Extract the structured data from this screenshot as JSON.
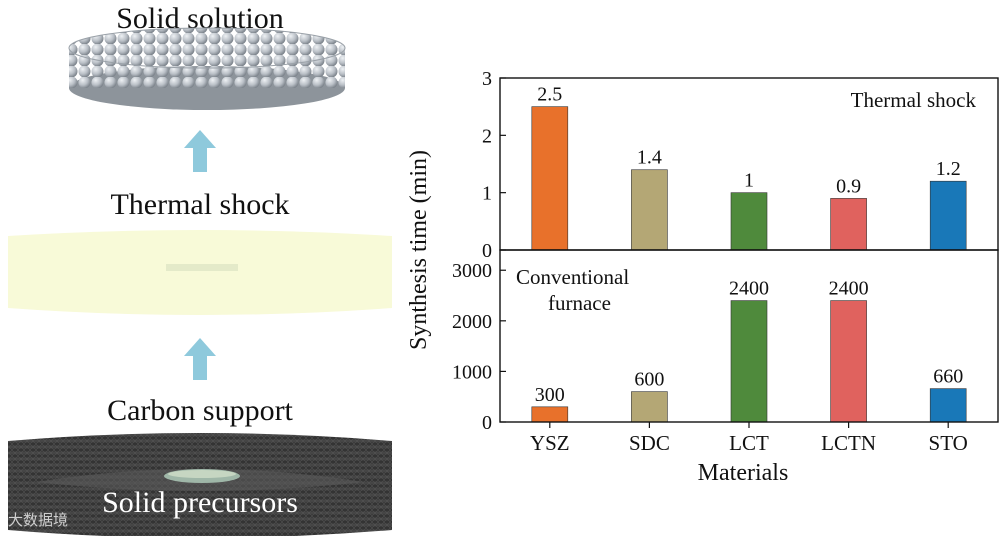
{
  "schematic": {
    "stages": [
      "Solid solution",
      "Thermal shock",
      "Carbon support",
      "Solid precursors"
    ],
    "colors": {
      "arrow": "#8ec9dc",
      "sphere": "#b9bfc6",
      "glow": "#f8fad8",
      "support": "#3e3e3e"
    }
  },
  "watermark": "大数据境",
  "chart_data": {
    "type": "bar",
    "categories": [
      "YSZ",
      "SDC",
      "LCT",
      "LCTN",
      "STO"
    ],
    "colors": [
      "#e8712b",
      "#b4a775",
      "#4f8a3c",
      "#e0625e",
      "#1978b8"
    ],
    "xlabel": "Materials",
    "ylabel": "Synthesis time (min)",
    "panels": [
      {
        "label_lines": [
          "Thermal shock"
        ],
        "label_position": "top-right",
        "values": [
          2.5,
          1.4,
          1,
          0.9,
          1.2
        ],
        "value_labels": [
          "2.5",
          "1.4",
          "1",
          "0.9",
          "1.2"
        ],
        "ylim": [
          0,
          3
        ],
        "yticks": [
          "0",
          "1",
          "2",
          "3"
        ]
      },
      {
        "label_lines": [
          "Conventional",
          "furnace"
        ],
        "label_position": "top-left",
        "values": [
          300,
          600,
          2400,
          2400,
          660
        ],
        "value_labels": [
          "300",
          "600",
          "2400",
          "2400",
          "660"
        ],
        "ylim": [
          0,
          3400
        ],
        "yticks": [
          "0",
          "1000",
          "2000",
          "3000"
        ]
      }
    ]
  }
}
